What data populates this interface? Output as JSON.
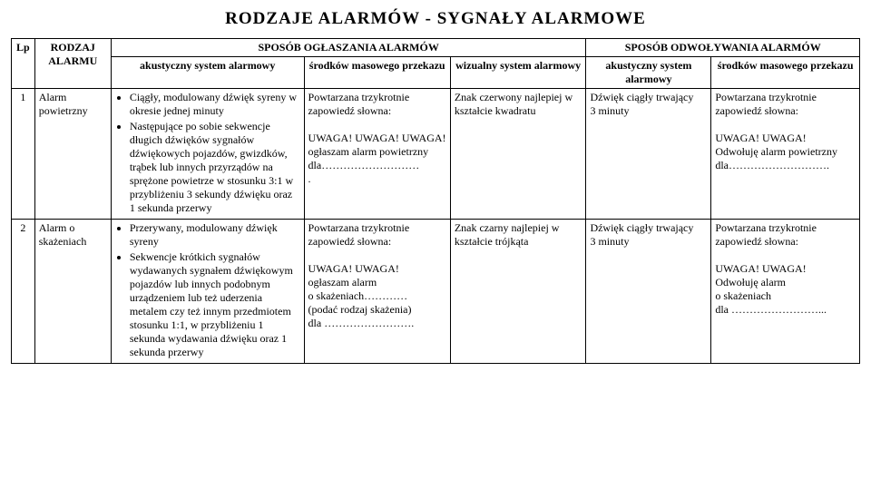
{
  "title": "RODZAJE ALARMÓW - SYGNAŁY ALARMOWE",
  "head": {
    "lp": "Lp",
    "type": "RODZAJ ALARMU",
    "group_declare": "SPOSÓB OGŁASZANIA ALARMÓW",
    "group_cancel": "SPOSÓB ODWOŁYWANIA ALARMÓW",
    "c_acoustic": "akustyczny system alarmowy",
    "c_mass": "środków masowego przekazu",
    "c_visual": "wizualny system alarmowy",
    "c_acoustic2": "akustyczny system alarmowy",
    "c_mass2": "środków masowego przekazu"
  },
  "rows": [
    {
      "lp": "1",
      "type": "Alarm powietrzny",
      "acoustic_items": [
        "Ciągły, modulowany dźwięk syreny w okresie jednej minuty",
        "Następujące po sobie sekwencje długich dźwięków sygnałów dźwiękowych pojazdów, gwizdków, trąbek lub innych przyrządów na sprężone powietrze w stosunku 3:1 w przybliżeniu 3 sekundy dźwięku oraz 1 sekunda przerwy"
      ],
      "mass": "Powtarzana trzykrotnie zapowiedź słowna:\n\nUWAGA! UWAGA! UWAGA!\nogłaszam alarm powietrzny\ndla………………………\n.",
      "visual": "Znak czerwony najlepiej w kształcie kwadratu",
      "acoustic2": "Dźwięk ciągły trwający\n3 minuty",
      "mass2": "Powtarzana trzykrotnie zapowiedź słowna:\n\nUWAGA! UWAGA!\nOdwołuję alarm powietrzny\ndla………………………."
    },
    {
      "lp": "2",
      "type": "Alarm o skażeniach",
      "acoustic_items": [
        "Przerywany, modulowany dźwięk syreny",
        "Sekwencje krótkich sygnałów wydawanych sygnałem dźwiękowym pojazdów lub innych podobnym urządzeniem lub też uderzenia metalem czy też innym przedmiotem stosunku 1:1, w przybliżeniu 1 sekunda wydawania dźwięku oraz 1 sekunda przerwy"
      ],
      "mass": "Powtarzana trzykrotnie zapowiedź słowna:\n\nUWAGA! UWAGA!\nogłaszam alarm\no skażeniach…………\n(podać rodzaj skażenia)\ndla …………………….",
      "visual": "Znak czarny najlepiej w kształcie trójkąta",
      "acoustic2": "Dźwięk ciągły trwający\n3 minuty",
      "mass2": "Powtarzana trzykrotnie zapowiedź słowna:\n\nUWAGA! UWAGA!\nOdwołuję alarm\no skażeniach\ndla ……………………..."
    }
  ]
}
